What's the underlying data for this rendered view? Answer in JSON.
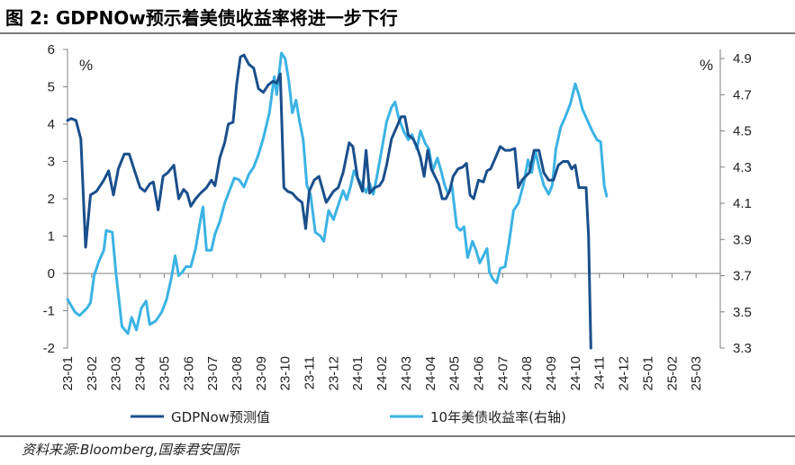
{
  "title": "图 2:  GDPNOw预示着美债收益率将进一步下行",
  "source": "资料来源:Bloomberg,国泰君安国际",
  "chart_data": {
    "type": "line",
    "title": "GDPNOw预示着美债收益率将进一步下行",
    "categories": [
      "23-01",
      "23-02",
      "23-03",
      "23-04",
      "23-05",
      "23-06",
      "23-07",
      "23-08",
      "23-09",
      "23-10",
      "23-11",
      "23-12",
      "24-01",
      "24-02",
      "24-03",
      "24-04",
      "24-05",
      "24-06",
      "24-07",
      "24-08",
      "24-09",
      "24-10",
      "24-11",
      "24-12",
      "25-01",
      "25-02",
      "25-03"
    ],
    "left_axis": {
      "unit": "%",
      "ylim": [
        -2,
        6
      ],
      "ticks": [
        "-2",
        "-1",
        "0",
        "1",
        "2",
        "3",
        "4",
        "5",
        "6"
      ]
    },
    "right_axis": {
      "unit": "%",
      "ylim": [
        3.3,
        4.95
      ],
      "ticks": [
        "3.3",
        "3.5",
        "3.7",
        "3.9",
        "4.1",
        "4.3",
        "4.5",
        "4.7",
        "4.9"
      ]
    },
    "series": [
      {
        "name": "GDPNow预测值",
        "axis": "left",
        "color": "#1a4f8c",
        "points": [
          [
            0,
            4.1
          ],
          [
            0.15,
            4.15
          ],
          [
            0.35,
            4.1
          ],
          [
            0.55,
            3.6
          ],
          [
            0.75,
            0.7
          ],
          [
            0.95,
            2.1
          ],
          [
            1.2,
            2.2
          ],
          [
            1.5,
            2.5
          ],
          [
            1.7,
            2.75
          ],
          [
            1.9,
            2.1
          ],
          [
            2.1,
            2.8
          ],
          [
            2.35,
            3.2
          ],
          [
            2.55,
            3.2
          ],
          [
            2.75,
            2.8
          ],
          [
            3.0,
            2.3
          ],
          [
            3.2,
            2.2
          ],
          [
            3.4,
            2.4
          ],
          [
            3.55,
            2.45
          ],
          [
            3.75,
            1.7
          ],
          [
            3.95,
            2.6
          ],
          [
            4.15,
            2.7
          ],
          [
            4.4,
            2.9
          ],
          [
            4.6,
            2.0
          ],
          [
            4.8,
            2.25
          ],
          [
            4.95,
            2.15
          ],
          [
            5.1,
            1.8
          ],
          [
            5.3,
            2.0
          ],
          [
            5.5,
            2.15
          ],
          [
            5.75,
            2.3
          ],
          [
            5.95,
            2.5
          ],
          [
            6.1,
            2.35
          ],
          [
            6.3,
            3.1
          ],
          [
            6.5,
            3.5
          ],
          [
            6.65,
            4.0
          ],
          [
            6.85,
            4.05
          ],
          [
            7.0,
            5.1
          ],
          [
            7.15,
            5.8
          ],
          [
            7.3,
            5.85
          ],
          [
            7.5,
            5.6
          ],
          [
            7.7,
            5.5
          ],
          [
            7.9,
            4.95
          ],
          [
            8.1,
            4.85
          ],
          [
            8.3,
            5.05
          ],
          [
            8.5,
            5.15
          ],
          [
            8.65,
            5.1
          ],
          [
            8.8,
            5.35
          ],
          [
            8.95,
            2.3
          ],
          [
            9.1,
            2.2
          ],
          [
            9.3,
            2.15
          ],
          [
            9.5,
            2.0
          ],
          [
            9.7,
            1.9
          ],
          [
            9.85,
            1.2
          ],
          [
            10.0,
            2.2
          ],
          [
            10.2,
            2.5
          ],
          [
            10.4,
            2.6
          ],
          [
            10.55,
            2.25
          ],
          [
            10.7,
            1.9
          ],
          [
            10.85,
            2.05
          ],
          [
            11.0,
            2.2
          ],
          [
            11.2,
            2.3
          ],
          [
            11.4,
            2.7
          ],
          [
            11.65,
            3.5
          ],
          [
            11.8,
            3.4
          ],
          [
            12.0,
            2.55
          ],
          [
            12.2,
            2.2
          ],
          [
            12.35,
            3.3
          ],
          [
            12.5,
            2.15
          ],
          [
            12.7,
            2.3
          ],
          [
            12.9,
            2.35
          ],
          [
            13.05,
            2.5
          ],
          [
            13.2,
            2.9
          ],
          [
            13.4,
            3.6
          ],
          [
            13.6,
            3.9
          ],
          [
            13.8,
            4.2
          ],
          [
            13.95,
            4.2
          ],
          [
            14.1,
            3.7
          ],
          [
            14.3,
            3.6
          ],
          [
            14.45,
            3.4
          ],
          [
            14.6,
            3.1
          ],
          [
            14.75,
            2.6
          ],
          [
            14.9,
            3.3
          ],
          [
            15.05,
            2.8
          ],
          [
            15.2,
            2.6
          ],
          [
            15.35,
            2.4
          ],
          [
            15.5,
            2.0
          ],
          [
            15.65,
            2.0
          ],
          [
            15.8,
            2.2
          ],
          [
            15.95,
            2.6
          ],
          [
            16.15,
            2.8
          ],
          [
            16.35,
            2.85
          ],
          [
            16.5,
            2.95
          ],
          [
            16.65,
            2.1
          ],
          [
            16.8,
            2.0
          ],
          [
            17.0,
            2.5
          ],
          [
            17.2,
            2.45
          ],
          [
            17.35,
            2.75
          ],
          [
            17.5,
            2.8
          ],
          [
            17.7,
            3.1
          ],
          [
            17.9,
            3.4
          ],
          [
            18.1,
            3.3
          ],
          [
            18.3,
            3.3
          ],
          [
            18.5,
            3.35
          ],
          [
            18.65,
            2.3
          ],
          [
            18.8,
            2.5
          ],
          [
            18.95,
            2.6
          ],
          [
            19.1,
            2.7
          ],
          [
            19.3,
            3.3
          ],
          [
            19.5,
            3.3
          ],
          [
            19.7,
            2.7
          ],
          [
            19.9,
            2.5
          ],
          [
            20.1,
            2.5
          ],
          [
            20.3,
            2.9
          ],
          [
            20.5,
            3.0
          ],
          [
            20.7,
            3.0
          ],
          [
            20.85,
            2.8
          ],
          [
            21.0,
            2.9
          ],
          [
            21.15,
            2.3
          ],
          [
            21.3,
            2.3
          ],
          [
            21.45,
            2.3
          ],
          [
            21.55,
            1.0
          ],
          [
            21.65,
            -2.0
          ]
        ]
      },
      {
        "name": "10年美债收益率(右轴)",
        "axis": "right",
        "color": "#3bb3e4",
        "points": [
          [
            0,
            3.57
          ],
          [
            0.3,
            3.5
          ],
          [
            0.5,
            3.48
          ],
          [
            0.8,
            3.52
          ],
          [
            0.95,
            3.55
          ],
          [
            1.1,
            3.7
          ],
          [
            1.3,
            3.78
          ],
          [
            1.5,
            3.84
          ],
          [
            1.6,
            3.95
          ],
          [
            1.85,
            3.94
          ],
          [
            2.0,
            3.72
          ],
          [
            2.1,
            3.6
          ],
          [
            2.25,
            3.42
          ],
          [
            2.5,
            3.38
          ],
          [
            2.65,
            3.47
          ],
          [
            2.85,
            3.4
          ],
          [
            3.05,
            3.52
          ],
          [
            3.25,
            3.56
          ],
          [
            3.4,
            3.43
          ],
          [
            3.65,
            3.45
          ],
          [
            3.9,
            3.5
          ],
          [
            4.1,
            3.57
          ],
          [
            4.3,
            3.69
          ],
          [
            4.45,
            3.81
          ],
          [
            4.6,
            3.7
          ],
          [
            4.75,
            3.72
          ],
          [
            4.9,
            3.75
          ],
          [
            5.1,
            3.75
          ],
          [
            5.3,
            3.85
          ],
          [
            5.5,
            4.01
          ],
          [
            5.6,
            4.08
          ],
          [
            5.75,
            3.84
          ],
          [
            5.95,
            3.84
          ],
          [
            6.1,
            3.93
          ],
          [
            6.3,
            4.0
          ],
          [
            6.5,
            4.1
          ],
          [
            6.7,
            4.17
          ],
          [
            6.9,
            4.24
          ],
          [
            7.1,
            4.23
          ],
          [
            7.3,
            4.19
          ],
          [
            7.5,
            4.26
          ],
          [
            7.7,
            4.3
          ],
          [
            7.9,
            4.37
          ],
          [
            8.1,
            4.46
          ],
          [
            8.35,
            4.6
          ],
          [
            8.55,
            4.8
          ],
          [
            8.65,
            4.7
          ],
          [
            8.85,
            4.93
          ],
          [
            9.0,
            4.9
          ],
          [
            9.15,
            4.78
          ],
          [
            9.3,
            4.6
          ],
          [
            9.45,
            4.67
          ],
          [
            9.6,
            4.55
          ],
          [
            9.75,
            4.45
          ],
          [
            9.9,
            4.2
          ],
          [
            10.05,
            4.15
          ],
          [
            10.25,
            3.94
          ],
          [
            10.45,
            3.92
          ],
          [
            10.6,
            3.89
          ],
          [
            10.8,
            4.06
          ],
          [
            11.0,
            4.01
          ],
          [
            11.2,
            4.09
          ],
          [
            11.4,
            4.17
          ],
          [
            11.55,
            4.12
          ],
          [
            11.7,
            4.19
          ],
          [
            11.85,
            4.28
          ],
          [
            12.0,
            4.24
          ],
          [
            12.2,
            4.2
          ],
          [
            12.35,
            4.16
          ],
          [
            12.5,
            4.21
          ],
          [
            12.65,
            4.15
          ],
          [
            12.8,
            4.25
          ],
          [
            13.0,
            4.4
          ],
          [
            13.2,
            4.55
          ],
          [
            13.4,
            4.63
          ],
          [
            13.55,
            4.66
          ],
          [
            13.7,
            4.57
          ],
          [
            13.9,
            4.5
          ],
          [
            14.1,
            4.45
          ],
          [
            14.25,
            4.48
          ],
          [
            14.45,
            4.4
          ],
          [
            14.6,
            4.5
          ],
          [
            14.8,
            4.43
          ],
          [
            14.95,
            4.4
          ],
          [
            15.1,
            4.28
          ],
          [
            15.3,
            4.35
          ],
          [
            15.45,
            4.28
          ],
          [
            15.6,
            4.2
          ],
          [
            15.75,
            4.15
          ],
          [
            15.9,
            4.2
          ],
          [
            16.1,
            3.97
          ],
          [
            16.25,
            3.95
          ],
          [
            16.4,
            3.97
          ],
          [
            16.55,
            3.8
          ],
          [
            16.75,
            3.89
          ],
          [
            16.9,
            3.84
          ],
          [
            17.05,
            3.77
          ],
          [
            17.2,
            3.81
          ],
          [
            17.35,
            3.85
          ],
          [
            17.45,
            3.72
          ],
          [
            17.6,
            3.68
          ],
          [
            17.75,
            3.66
          ],
          [
            17.9,
            3.74
          ],
          [
            18.1,
            3.75
          ],
          [
            18.25,
            3.87
          ],
          [
            18.45,
            4.06
          ],
          [
            18.65,
            4.1
          ],
          [
            18.85,
            4.2
          ],
          [
            19.05,
            4.34
          ],
          [
            19.2,
            4.27
          ],
          [
            19.35,
            4.39
          ],
          [
            19.5,
            4.3
          ],
          [
            19.7,
            4.2
          ],
          [
            19.9,
            4.15
          ],
          [
            20.05,
            4.2
          ],
          [
            20.2,
            4.4
          ],
          [
            20.4,
            4.52
          ],
          [
            20.6,
            4.58
          ],
          [
            20.8,
            4.65
          ],
          [
            21.0,
            4.76
          ],
          [
            21.15,
            4.7
          ],
          [
            21.3,
            4.62
          ],
          [
            21.5,
            4.56
          ],
          [
            21.7,
            4.5
          ],
          [
            21.9,
            4.45
          ],
          [
            22.05,
            4.44
          ],
          [
            22.2,
            4.2
          ],
          [
            22.3,
            4.14
          ]
        ]
      }
    ],
    "legend": {
      "placement": "bottom",
      "entries": [
        "GDPNow预测值",
        "10年美债收益率(右轴)"
      ]
    },
    "grid": false
  }
}
